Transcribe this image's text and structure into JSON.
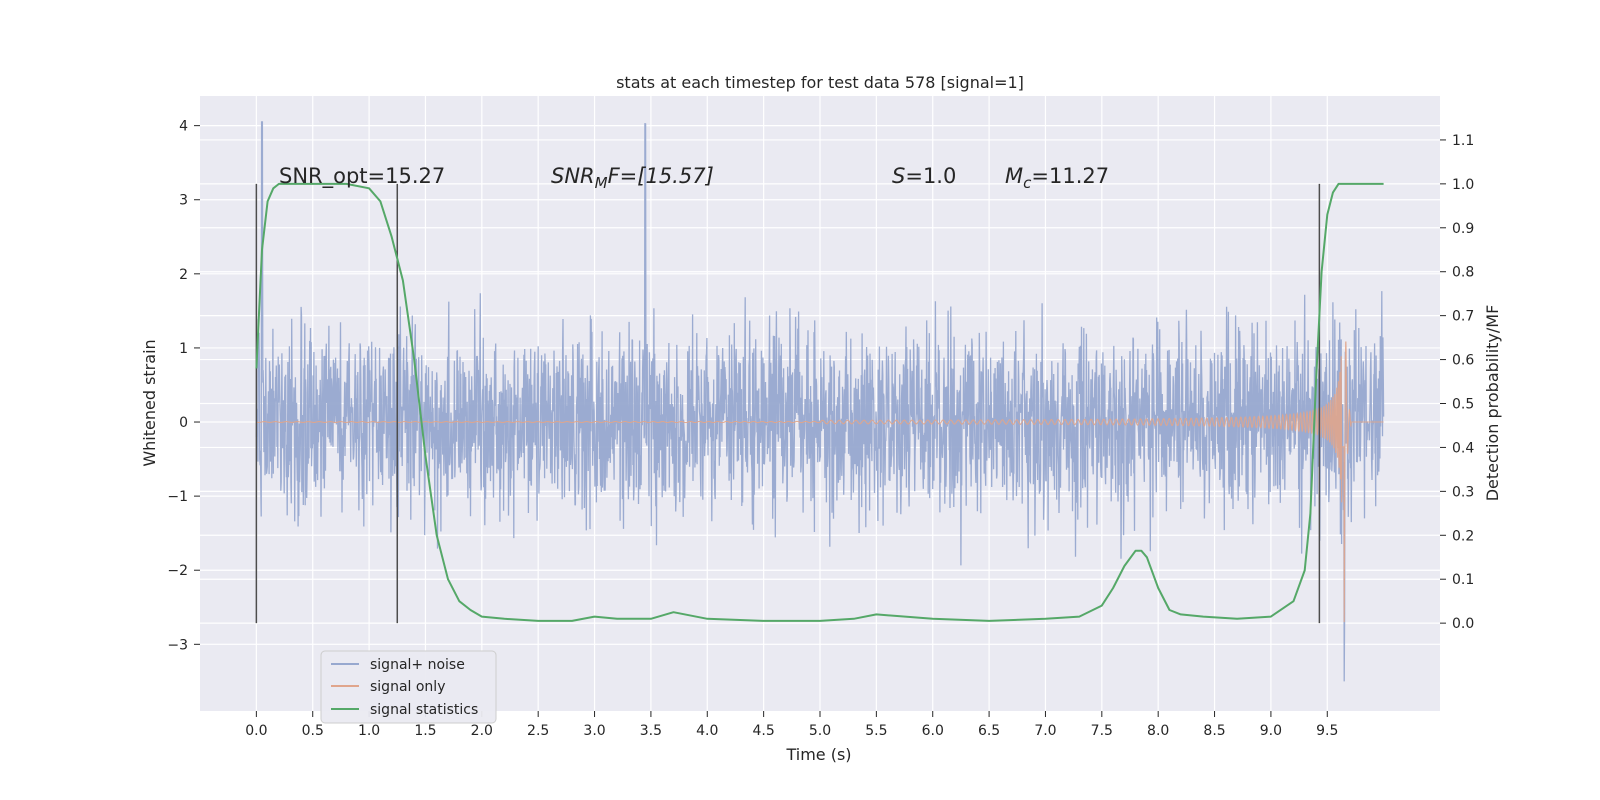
{
  "chart_data": {
    "type": "line",
    "title": "stats at each timestep for test data 578 [signal=1]",
    "xlabel": "Time (s)",
    "ylabel": "Whitened strain",
    "ylabel_right": "Detection probability/MF",
    "xlim": [
      -0.5,
      10.5
    ],
    "ylim": [
      -3.9,
      4.4
    ],
    "ylim_right": [
      -0.2,
      1.2
    ],
    "x_ticks": [
      "0.0",
      "0.5",
      "1.0",
      "1.5",
      "2.0",
      "2.5",
      "3.0",
      "3.5",
      "4.0",
      "4.5",
      "5.0",
      "5.5",
      "6.0",
      "6.5",
      "7.0",
      "7.5",
      "8.0",
      "8.5",
      "9.0",
      "9.5"
    ],
    "y_ticks": [
      "4",
      "3",
      "2",
      "1",
      "0",
      "−1",
      "−2",
      "−3"
    ],
    "y_ticks_right": [
      "1.1",
      "1.0",
      "0.9",
      "0.8",
      "0.7",
      "0.6",
      "0.5",
      "0.4",
      "0.3",
      "0.2",
      "0.1",
      "0.0"
    ],
    "annotations": {
      "snr_opt": "SNR_opt=15.27",
      "snr_mf_main": "SNR",
      "snr_mf_sub": "M",
      "snr_mf_rest": "F=[15.57]",
      "s_main": "S",
      "s_rest": "=1.0",
      "mc_main": "M",
      "mc_sub": "c",
      "mc_rest": "=11.27"
    },
    "vertical_lines_x": [
      0.0,
      1.25,
      9.43
    ],
    "grid": true,
    "legend_position": "lower-left",
    "series": [
      {
        "name": "signal+ noise",
        "color": "#97a8cf",
        "description_values": "noise band between about -2.5 and 2.5 with spikes to 4.0 (t≈0.05) and 4.0 (t≈3.45), range t=0.0 to 10.0"
      },
      {
        "name": "signal only",
        "color": "#e0a58c",
        "chirp_start": 5.0,
        "chirp_peak_time": 9.65,
        "chirp_peak_amp": 1.9,
        "chirp_min_amp": -2.7
      },
      {
        "name": "signal statistics",
        "color": "#55a868",
        "x": [
          0.0,
          0.05,
          0.1,
          0.15,
          0.2,
          0.3,
          0.5,
          0.8,
          1.0,
          1.1,
          1.2,
          1.3,
          1.4,
          1.5,
          1.6,
          1.7,
          1.8,
          1.9,
          2.0,
          2.2,
          2.5,
          2.8,
          3.0,
          3.2,
          3.5,
          3.7,
          4.0,
          4.5,
          5.0,
          5.3,
          5.5,
          6.0,
          6.5,
          7.0,
          7.3,
          7.5,
          7.6,
          7.7,
          7.8,
          7.85,
          7.9,
          8.0,
          8.1,
          8.2,
          8.4,
          8.7,
          9.0,
          9.2,
          9.3,
          9.35,
          9.4,
          9.45,
          9.5,
          9.55,
          9.6,
          9.7,
          9.9,
          10.0
        ],
        "values": [
          0.58,
          0.85,
          0.96,
          0.99,
          1.0,
          1.0,
          1.0,
          1.0,
          0.99,
          0.96,
          0.88,
          0.78,
          0.6,
          0.38,
          0.2,
          0.1,
          0.05,
          0.03,
          0.015,
          0.01,
          0.005,
          0.005,
          0.015,
          0.01,
          0.01,
          0.025,
          0.01,
          0.005,
          0.005,
          0.01,
          0.02,
          0.01,
          0.005,
          0.01,
          0.015,
          0.04,
          0.08,
          0.13,
          0.165,
          0.165,
          0.15,
          0.08,
          0.03,
          0.02,
          0.015,
          0.01,
          0.015,
          0.05,
          0.12,
          0.25,
          0.55,
          0.8,
          0.93,
          0.98,
          1.0,
          1.0,
          1.0,
          1.0
        ]
      }
    ]
  },
  "colors": {
    "plot_bg": "#eaeaf2",
    "grid": "#ffffff",
    "vline": "#4d4d4d"
  }
}
